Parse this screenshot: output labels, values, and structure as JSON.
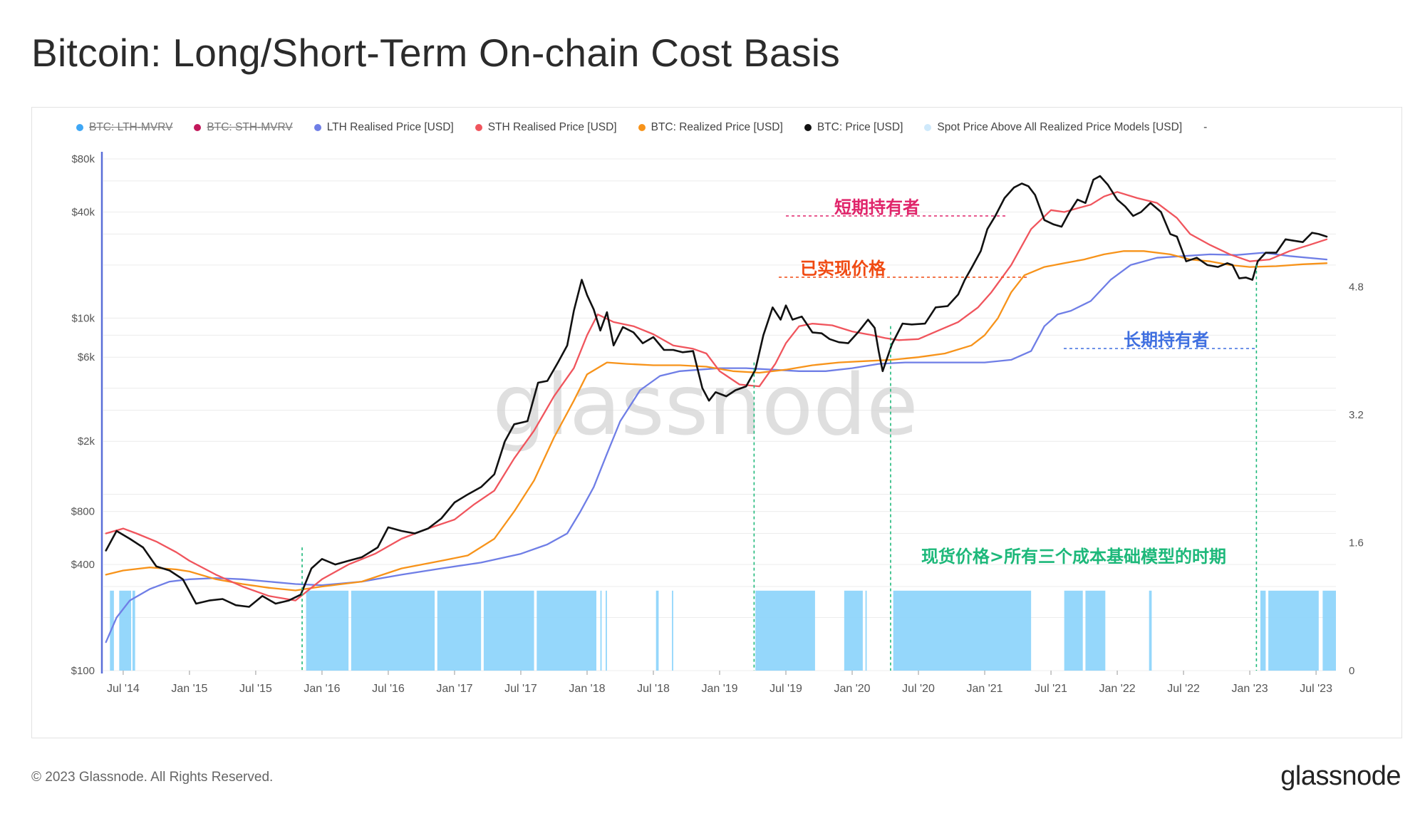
{
  "page": {
    "title": "Bitcoin: Long/Short-Term On-chain Cost Basis",
    "copyright": "© 2023 Glassnode. All Rights Reserved.",
    "brand": "glassnode",
    "watermark": "glassnode"
  },
  "legend": [
    {
      "label": "BTC: LTH-MVRV",
      "color": "#3fa7f5",
      "disabled": true
    },
    {
      "label": "BTC: STH-MVRV",
      "color": "#c2185b",
      "disabled": true
    },
    {
      "label": "LTH Realised Price [USD]",
      "color": "#6f7ee6",
      "disabled": false
    },
    {
      "label": "STH Realised Price [USD]",
      "color": "#f0555d",
      "disabled": false
    },
    {
      "label": "BTC: Realized Price [USD]",
      "color": "#f7931a",
      "disabled": false
    },
    {
      "label": "BTC: Price [USD]",
      "color": "#111111",
      "disabled": false
    },
    {
      "label": "Spot Price Above All Realized Price Models [USD]",
      "color": "#cfe9fb",
      "disabled": false
    },
    {
      "label": "-",
      "color": "",
      "disabled": false
    }
  ],
  "chart_data": {
    "type": "line",
    "title": "Bitcoin: Long/Short-Term On-chain Cost Basis",
    "y_scale": "log",
    "ylim": [
      100,
      80000
    ],
    "y_ticks": [
      {
        "value": 100,
        "label": "$100"
      },
      {
        "value": 400,
        "label": "$400"
      },
      {
        "value": 800,
        "label": "$800"
      },
      {
        "value": 2000,
        "label": "$2k"
      },
      {
        "value": 6000,
        "label": "$6k"
      },
      {
        "value": 10000,
        "label": "$10k"
      },
      {
        "value": 40000,
        "label": "$40k"
      },
      {
        "value": 80000,
        "label": "$80k"
      }
    ],
    "y2_ticks": [
      {
        "value": 0,
        "label": "0"
      },
      {
        "value": 1.6,
        "label": "1.6"
      },
      {
        "value": 3.2,
        "label": "3.2"
      },
      {
        "value": 4.8,
        "label": "4.8"
      }
    ],
    "y2lim": [
      0,
      6.4
    ],
    "xlim": [
      2014.35,
      2023.65
    ],
    "x_ticks": [
      {
        "value": 2014.5,
        "label": "Jul '14"
      },
      {
        "value": 2015.0,
        "label": "Jan '15"
      },
      {
        "value": 2015.5,
        "label": "Jul '15"
      },
      {
        "value": 2016.0,
        "label": "Jan '16"
      },
      {
        "value": 2016.5,
        "label": "Jul '16"
      },
      {
        "value": 2017.0,
        "label": "Jan '17"
      },
      {
        "value": 2017.5,
        "label": "Jul '17"
      },
      {
        "value": 2018.0,
        "label": "Jan '18"
      },
      {
        "value": 2018.5,
        "label": "Jul '18"
      },
      {
        "value": 2019.0,
        "label": "Jan '19"
      },
      {
        "value": 2019.5,
        "label": "Jul '19"
      },
      {
        "value": 2020.0,
        "label": "Jan '20"
      },
      {
        "value": 2020.5,
        "label": "Jul '20"
      },
      {
        "value": 2021.0,
        "label": "Jan '21"
      },
      {
        "value": 2021.5,
        "label": "Jul '21"
      },
      {
        "value": 2022.0,
        "label": "Jan '22"
      },
      {
        "value": 2022.5,
        "label": "Jul '22"
      },
      {
        "value": 2023.0,
        "label": "Jan '23"
      },
      {
        "value": 2023.5,
        "label": "Jul '23"
      }
    ],
    "series": [
      {
        "name": "BTC: Price [USD]",
        "color": "#111111",
        "width": 2.6,
        "x": [
          2014.37,
          2014.45,
          2014.55,
          2014.65,
          2014.75,
          2014.85,
          2014.95,
          2015.05,
          2015.15,
          2015.25,
          2015.35,
          2015.45,
          2015.55,
          2015.65,
          2015.75,
          2015.84,
          2015.92,
          2016.0,
          2016.1,
          2016.2,
          2016.3,
          2016.42,
          2016.5,
          2016.6,
          2016.7,
          2016.8,
          2016.9,
          2017.0,
          2017.1,
          2017.2,
          2017.3,
          2017.38,
          2017.45,
          2017.55,
          2017.63,
          2017.7,
          2017.78,
          2017.85,
          2017.9,
          2017.96,
          2018.0,
          2018.05,
          2018.1,
          2018.15,
          2018.2,
          2018.27,
          2018.35,
          2018.42,
          2018.5,
          2018.58,
          2018.65,
          2018.72,
          2018.8,
          2018.87,
          2018.92,
          2018.97,
          2019.05,
          2019.12,
          2019.2,
          2019.27,
          2019.33,
          2019.4,
          2019.46,
          2019.5,
          2019.55,
          2019.62,
          2019.7,
          2019.77,
          2019.83,
          2019.9,
          2019.97,
          2020.05,
          2020.12,
          2020.17,
          2020.2,
          2020.23,
          2020.3,
          2020.38,
          2020.45,
          2020.55,
          2020.63,
          2020.72,
          2020.8,
          2020.85,
          2020.9,
          2020.97,
          2021.02,
          2021.08,
          2021.15,
          2021.22,
          2021.28,
          2021.33,
          2021.38,
          2021.45,
          2021.52,
          2021.58,
          2021.64,
          2021.7,
          2021.76,
          2021.82,
          2021.87,
          2021.93,
          2022.0,
          2022.06,
          2022.12,
          2022.18,
          2022.25,
          2022.33,
          2022.4,
          2022.45,
          2022.52,
          2022.6,
          2022.68,
          2022.76,
          2022.83,
          2022.87,
          2022.92,
          2022.97,
          2023.02,
          2023.06,
          2023.12,
          2023.2,
          2023.27,
          2023.33,
          2023.4,
          2023.47,
          2023.52,
          2023.58
        ],
        "y": [
          480,
          620,
          560,
          500,
          390,
          370,
          330,
          240,
          250,
          255,
          235,
          230,
          265,
          240,
          250,
          270,
          380,
          430,
          400,
          420,
          440,
          500,
          650,
          620,
          600,
          640,
          730,
          900,
          1000,
          1100,
          1300,
          2000,
          2500,
          2600,
          4300,
          4400,
          5600,
          7000,
          11000,
          16500,
          13500,
          11200,
          8500,
          10800,
          7000,
          8900,
          8300,
          7200,
          7800,
          6600,
          6600,
          6400,
          6500,
          4000,
          3400,
          3800,
          3600,
          3900,
          4100,
          5100,
          8000,
          11500,
          9800,
          11800,
          9800,
          10200,
          8300,
          8200,
          7600,
          7300,
          7200,
          8400,
          9800,
          8800,
          6500,
          5000,
          7100,
          9300,
          9200,
          9300,
          11500,
          11700,
          13600,
          16500,
          19200,
          24000,
          32000,
          38000,
          48000,
          55000,
          58000,
          56000,
          50000,
          36000,
          34000,
          33000,
          40000,
          47000,
          45000,
          61000,
          64000,
          57000,
          47000,
          43000,
          38000,
          40000,
          45000,
          40000,
          30000,
          29000,
          21000,
          22000,
          20000,
          19500,
          20500,
          20000,
          16800,
          17000,
          16500,
          21000,
          23500,
          23500,
          28000,
          27500,
          27000,
          30500,
          30000,
          29000
        ]
      },
      {
        "name": "STH Realised Price [USD]",
        "color": "#f0555d",
        "width": 2.3,
        "x": [
          2014.37,
          2014.5,
          2014.6,
          2014.75,
          2014.9,
          2015.0,
          2015.2,
          2015.4,
          2015.6,
          2015.8,
          2016.0,
          2016.2,
          2016.4,
          2016.6,
          2016.8,
          2017.0,
          2017.15,
          2017.3,
          2017.45,
          2017.6,
          2017.75,
          2017.9,
          2018.0,
          2018.08,
          2018.2,
          2018.35,
          2018.5,
          2018.65,
          2018.8,
          2018.9,
          2019.0,
          2019.15,
          2019.3,
          2019.42,
          2019.5,
          2019.6,
          2019.7,
          2019.85,
          2020.0,
          2020.15,
          2020.25,
          2020.35,
          2020.5,
          2020.65,
          2020.8,
          2020.95,
          2021.05,
          2021.2,
          2021.35,
          2021.5,
          2021.6,
          2021.7,
          2021.8,
          2021.9,
          2022.0,
          2022.15,
          2022.3,
          2022.45,
          2022.55,
          2022.7,
          2022.85,
          2023.0,
          2023.15,
          2023.3,
          2023.45,
          2023.58
        ],
        "y": [
          600,
          640,
          600,
          540,
          470,
          420,
          350,
          300,
          265,
          250,
          330,
          400,
          460,
          560,
          640,
          720,
          880,
          1050,
          1600,
          2300,
          3600,
          5200,
          8000,
          10500,
          9500,
          9000,
          8100,
          7000,
          6700,
          6300,
          5000,
          4200,
          4100,
          5500,
          7200,
          9000,
          9300,
          9100,
          8400,
          8000,
          7700,
          7500,
          7600,
          8500,
          9500,
          11500,
          14000,
          20000,
          32000,
          41000,
          40000,
          42000,
          44000,
          49000,
          52000,
          48000,
          45000,
          37000,
          30000,
          26000,
          23000,
          21000,
          21500,
          24000,
          26000,
          28000
        ]
      },
      {
        "name": "BTC: Realized Price [USD]",
        "color": "#f7931a",
        "width": 2.3,
        "x": [
          2014.37,
          2014.5,
          2014.7,
          2014.9,
          2015.0,
          2015.2,
          2015.4,
          2015.6,
          2015.8,
          2016.0,
          2016.3,
          2016.6,
          2016.9,
          2017.1,
          2017.3,
          2017.45,
          2017.6,
          2017.75,
          2017.9,
          2018.0,
          2018.15,
          2018.3,
          2018.5,
          2018.7,
          2018.9,
          2019.1,
          2019.3,
          2019.5,
          2019.7,
          2019.9,
          2020.1,
          2020.3,
          2020.5,
          2020.7,
          2020.9,
          2021.0,
          2021.1,
          2021.2,
          2021.3,
          2021.45,
          2021.6,
          2021.75,
          2021.9,
          2022.05,
          2022.2,
          2022.4,
          2022.55,
          2022.7,
          2022.85,
          2023.0,
          2023.2,
          2023.4,
          2023.58
        ],
        "y": [
          350,
          370,
          385,
          375,
          365,
          330,
          310,
          295,
          285,
          300,
          320,
          380,
          420,
          450,
          560,
          800,
          1200,
          2100,
          3400,
          4800,
          5600,
          5500,
          5400,
          5400,
          5300,
          5000,
          4900,
          5100,
          5400,
          5600,
          5700,
          5800,
          6000,
          6300,
          7000,
          8000,
          10000,
          14000,
          17500,
          19500,
          20500,
          21500,
          23000,
          24000,
          24000,
          23000,
          21500,
          21000,
          20000,
          19500,
          19700,
          20200,
          20500
        ]
      },
      {
        "name": "LTH Realised Price [USD]",
        "color": "#6f7ee6",
        "width": 2.3,
        "x": [
          2014.37,
          2014.45,
          2014.55,
          2014.7,
          2014.85,
          2015.0,
          2015.2,
          2015.4,
          2015.6,
          2015.8,
          2016.0,
          2016.3,
          2016.6,
          2016.9,
          2017.2,
          2017.5,
          2017.7,
          2017.85,
          2017.95,
          2018.05,
          2018.15,
          2018.25,
          2018.4,
          2018.55,
          2018.7,
          2018.85,
          2019.0,
          2019.2,
          2019.4,
          2019.6,
          2019.8,
          2020.0,
          2020.2,
          2020.4,
          2020.6,
          2020.8,
          2021.0,
          2021.2,
          2021.35,
          2021.45,
          2021.55,
          2021.65,
          2021.8,
          2021.95,
          2022.1,
          2022.3,
          2022.5,
          2022.7,
          2022.9,
          2023.1,
          2023.3,
          2023.58
        ],
        "y": [
          145,
          200,
          250,
          290,
          320,
          330,
          335,
          330,
          320,
          310,
          305,
          320,
          350,
          380,
          410,
          460,
          520,
          600,
          800,
          1100,
          1700,
          2600,
          3900,
          4700,
          5000,
          5100,
          5200,
          5200,
          5100,
          5000,
          5000,
          5200,
          5500,
          5600,
          5600,
          5600,
          5600,
          5800,
          6500,
          9000,
          10500,
          11000,
          12500,
          16500,
          20000,
          22000,
          22500,
          23000,
          22800,
          23500,
          22500,
          21500
        ]
      }
    ],
    "shaded_periods": [
      [
        2014.4,
        2014.43
      ],
      [
        2014.47,
        2014.56
      ],
      [
        2014.57,
        2014.59
      ],
      [
        2015.88,
        2016.2
      ],
      [
        2016.22,
        2016.85
      ],
      [
        2016.87,
        2017.2
      ],
      [
        2017.22,
        2017.6
      ],
      [
        2017.62,
        2018.07
      ],
      [
        2018.1,
        2018.11
      ],
      [
        2018.14,
        2018.15
      ],
      [
        2018.52,
        2018.54
      ],
      [
        2018.64,
        2018.65
      ],
      [
        2019.27,
        2019.72
      ],
      [
        2019.94,
        2020.08
      ],
      [
        2020.1,
        2020.11
      ],
      [
        2020.31,
        2021.35
      ],
      [
        2021.6,
        2021.74
      ],
      [
        2021.76,
        2021.91
      ],
      [
        2022.24,
        2022.26
      ],
      [
        2023.08,
        2023.12
      ],
      [
        2023.14,
        2023.52
      ],
      [
        2023.55,
        2023.65
      ]
    ],
    "annotations": [
      {
        "text": "短期持有者",
        "color": "#e0246a"
      },
      {
        "text": "已实现价格",
        "color": "#f04a12"
      },
      {
        "text": "长期持有者",
        "color": "#3f6fe0"
      },
      {
        "text": "现货价格>所有三个成本基础模型的时期",
        "color": "#1db87a"
      }
    ],
    "guide_lines_x": [
      2015.85,
      2019.26,
      2020.29,
      2023.05
    ]
  }
}
